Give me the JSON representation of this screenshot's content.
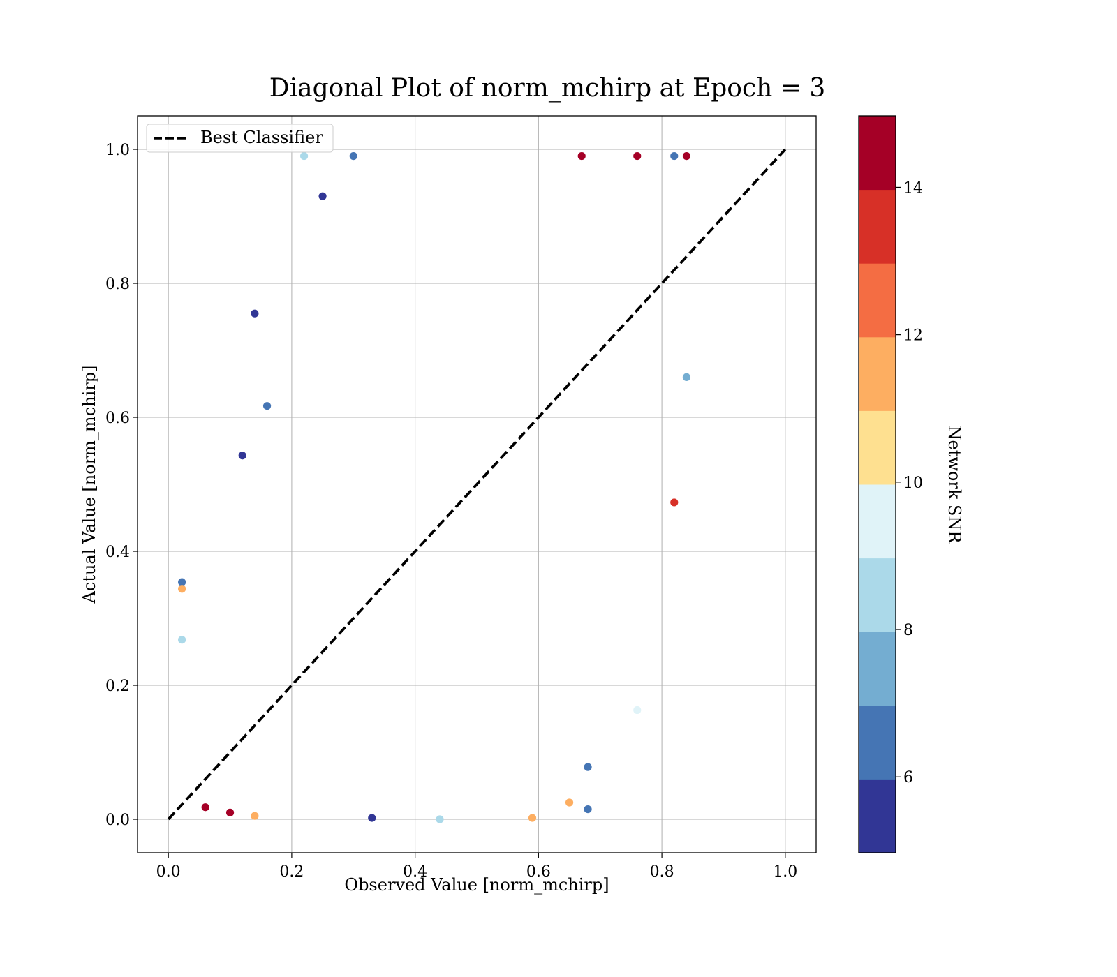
{
  "chart_data": {
    "type": "scatter",
    "title": "Diagonal Plot of norm_mchirp at Epoch = 3",
    "xlabel": "Observed Value [norm_mchirp]",
    "ylabel": "Actual Value [norm_mchirp]",
    "xlim": [
      -0.05,
      1.05
    ],
    "ylim": [
      -0.05,
      1.05
    ],
    "xticks": [
      "0.0",
      "0.2",
      "0.4",
      "0.6",
      "0.8",
      "1.0"
    ],
    "yticks": [
      "0.0",
      "0.2",
      "0.4",
      "0.6",
      "0.8",
      "1.0"
    ],
    "grid": true,
    "legend": {
      "placement": "upper-left",
      "entries": [
        {
          "label": "Best Classifier",
          "style": "dashed",
          "color": "#000000"
        }
      ]
    },
    "reference_line": {
      "name": "Best Classifier",
      "x": [
        0,
        1
      ],
      "y": [
        0,
        1
      ]
    },
    "colorbar": {
      "label": "Network SNR",
      "range": [
        4.97,
        14.97
      ],
      "ticks": [
        "6",
        "8",
        "10",
        "12",
        "14"
      ],
      "boundaries": [
        4.97,
        5.97,
        6.97,
        7.97,
        8.97,
        9.97,
        10.97,
        11.97,
        12.97,
        13.97,
        14.97
      ],
      "colors": [
        "#313695",
        "#4575b4",
        "#74add1",
        "#abd9e9",
        "#e0f3f8",
        "#fee090",
        "#fdae61",
        "#f46d43",
        "#d73027",
        "#a50026"
      ]
    },
    "series": [
      {
        "color_by": "snr",
        "points": [
          [
            0.022,
            0.354,
            6.2
          ],
          [
            0.022,
            0.344,
            11.0
          ],
          [
            0.022,
            0.268,
            8.8
          ],
          [
            0.16,
            0.617,
            6.5
          ],
          [
            0.12,
            0.543,
            5.2
          ],
          [
            0.14,
            0.755,
            5.3
          ],
          [
            0.22,
            0.99,
            8.5
          ],
          [
            0.3,
            0.99,
            6.1
          ],
          [
            0.25,
            0.93,
            5.4
          ],
          [
            0.67,
            0.99,
            14.2
          ],
          [
            0.76,
            0.99,
            14.8
          ],
          [
            0.82,
            0.99,
            6.0
          ],
          [
            0.68,
            0.015,
            6.2
          ],
          [
            0.68,
            0.078,
            6.0
          ],
          [
            0.65,
            0.025,
            11.0
          ],
          [
            0.59,
            0.002,
            11.0
          ],
          [
            0.76,
            0.163,
            9.8
          ],
          [
            0.82,
            0.473,
            13.3
          ],
          [
            0.84,
            0.66,
            7.5
          ],
          [
            0.84,
            0.99,
            14.5
          ],
          [
            0.1,
            0.01,
            14.6
          ],
          [
            0.33,
            0.002,
            5.5
          ],
          [
            0.06,
            0.018,
            14.8
          ],
          [
            0.14,
            0.005,
            11.2
          ],
          [
            0.44,
            0.0,
            8.0
          ]
        ]
      }
    ]
  }
}
